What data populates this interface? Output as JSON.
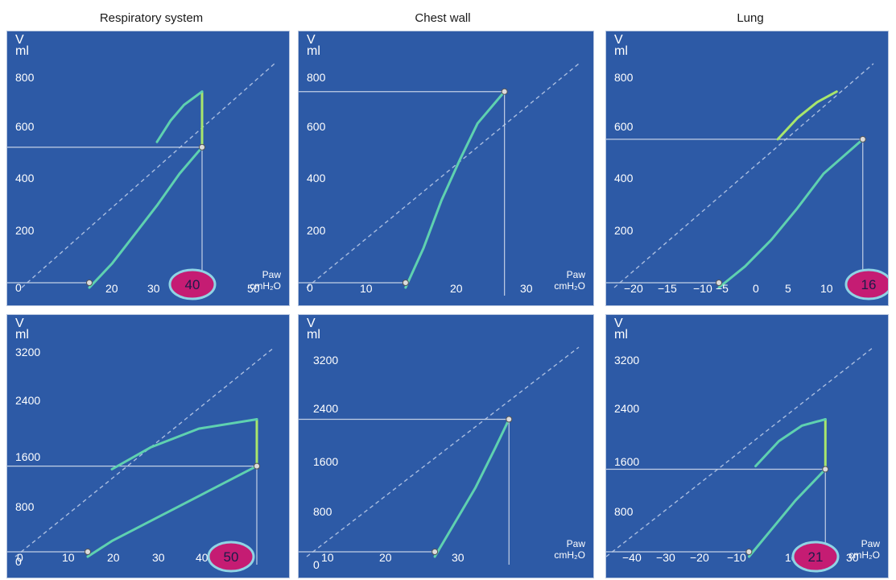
{
  "column_titles": [
    "Respiratory system",
    "Chest wall",
    "Lung"
  ],
  "colors": {
    "background": "#2d5aa6",
    "frame": "#b7c6df",
    "guide": "#c3d0e6",
    "identity": "#a9bde0",
    "curve": "#5fd1b0",
    "curve_light": "#a8e66c",
    "badge_fill": "#c51c73",
    "badge_ring": "#8fd4e4",
    "badge_text": "#1b1b4a"
  },
  "panels": [
    {
      "v_label": "V",
      "v_unit": "ml",
      "x_unit_top": "Paw",
      "x_unit_bottom": "cmH₂O",
      "y_ticks": [
        "800",
        "600",
        "400",
        "200",
        "0"
      ],
      "x_ticks": [
        "20",
        "30",
        "50"
      ],
      "badge": "40"
    },
    {
      "v_label": "V",
      "v_unit": "ml",
      "x_unit_top": "Paw",
      "x_unit_bottom": "cmH₂O",
      "y_ticks": [
        "800",
        "600",
        "400",
        "200",
        "0"
      ],
      "x_ticks": [
        "10",
        "20",
        "30"
      ],
      "badge": ""
    },
    {
      "v_label": "V",
      "v_unit": "ml",
      "x_unit_top": "",
      "x_unit_bottom": "",
      "y_ticks": [
        "800",
        "600",
        "400",
        "200"
      ],
      "x_ticks": [
        "−20",
        "−15",
        "−10",
        "−5",
        "0",
        "5",
        "10"
      ],
      "badge": "16"
    },
    {
      "v_label": "V",
      "v_unit": "ml",
      "x_unit_top": "",
      "x_unit_bottom": "",
      "y_ticks": [
        "3200",
        "2400",
        "1600",
        "800",
        "0"
      ],
      "x_ticks": [
        "0",
        "10",
        "20",
        "30",
        "40"
      ],
      "badge": "50"
    },
    {
      "v_label": "V",
      "v_unit": "ml",
      "x_unit_top": "Paw",
      "x_unit_bottom": "cmH₂O",
      "y_ticks": [
        "3200",
        "2400",
        "1600",
        "800",
        "0"
      ],
      "x_ticks": [
        "10",
        "20",
        "30"
      ],
      "badge": ""
    },
    {
      "v_label": "V",
      "v_unit": "ml",
      "x_unit_top": "Paw",
      "x_unit_bottom": "cmH₂O",
      "y_ticks": [
        "3200",
        "2400",
        "1600",
        "800"
      ],
      "x_ticks": [
        "−40",
        "−30",
        "−20",
        "−10",
        "10",
        "30"
      ],
      "badge": "21"
    }
  ],
  "chart_data": [
    {
      "type": "line",
      "ylim": [
        0,
        800
      ],
      "series": [
        {
          "x": [
            15,
            20,
            25,
            30,
            35,
            40
          ],
          "y": [
            0,
            90,
            200,
            310,
            430,
            530
          ]
        },
        {
          "x": [
            40,
            40
          ],
          "y": [
            530,
            740
          ]
        },
        {
          "x": [
            30,
            33,
            36,
            40
          ],
          "y": [
            550,
            630,
            690,
            740
          ]
        }
      ]
    },
    {
      "type": "line",
      "ylim": [
        0,
        800
      ],
      "series": [
        {
          "x": [
            16,
            18,
            20,
            22,
            24,
            27
          ],
          "y": [
            0,
            150,
            330,
            480,
            620,
            740
          ]
        }
      ]
    },
    {
      "type": "line",
      "ylim": [
        0,
        800
      ],
      "series": [
        {
          "x": [
            -6,
            -2,
            2,
            6,
            10,
            16
          ],
          "y": [
            0,
            80,
            180,
            300,
            430,
            560
          ]
        },
        {
          "x": [
            3,
            6,
            9,
            12
          ],
          "y": [
            560,
            640,
            700,
            740
          ]
        }
      ]
    },
    {
      "type": "line",
      "ylim": [
        0,
        3200
      ],
      "series": [
        {
          "x": [
            15,
            20,
            30,
            40,
            50
          ],
          "y": [
            0,
            250,
            650,
            1050,
            1450
          ]
        },
        {
          "x": [
            50,
            50
          ],
          "y": [
            1450,
            2200
          ]
        },
        {
          "x": [
            20,
            28,
            38,
            50
          ],
          "y": [
            1400,
            1750,
            2050,
            2200
          ]
        }
      ]
    },
    {
      "type": "line",
      "ylim": [
        0,
        3200
      ],
      "series": [
        {
          "x": [
            19,
            22,
            25,
            28,
            30
          ],
          "y": [
            0,
            550,
            1100,
            1750,
            2200
          ]
        }
      ]
    },
    {
      "type": "line",
      "ylim": [
        0,
        3200
      ],
      "series": [
        {
          "x": [
            -2,
            5,
            12,
            21
          ],
          "y": [
            0,
            450,
            900,
            1400
          ]
        },
        {
          "x": [
            21,
            21
          ],
          "y": [
            1400,
            2200
          ]
        },
        {
          "x": [
            0,
            7,
            14,
            21
          ],
          "y": [
            1450,
            1850,
            2100,
            2200
          ]
        }
      ]
    }
  ]
}
